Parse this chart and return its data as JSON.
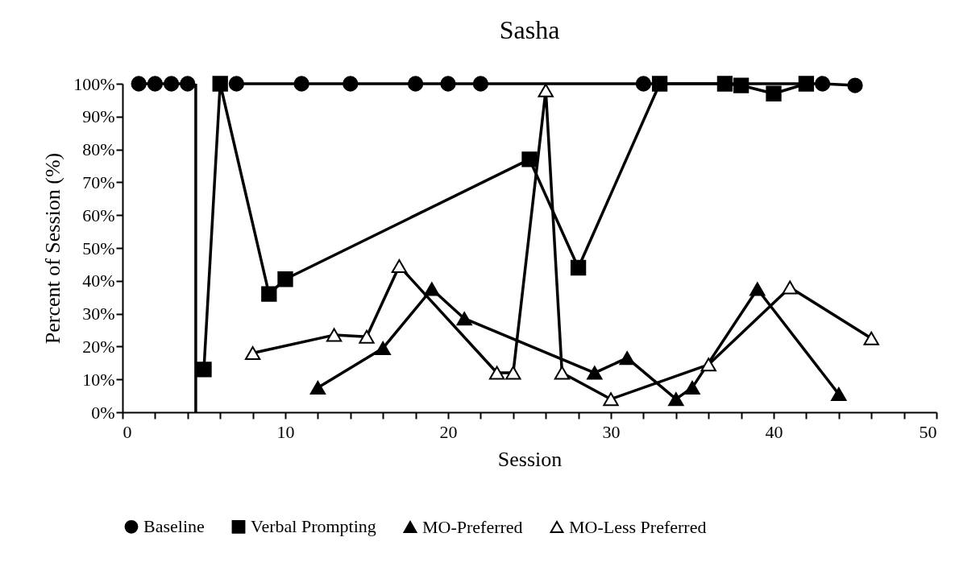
{
  "chart_data": {
    "type": "line",
    "title": "Sasha",
    "xlabel": "Session",
    "ylabel": "Percent of Session (%)",
    "xlim": [
      0,
      50
    ],
    "ylim": [
      0,
      100
    ],
    "xticks": [
      0,
      {
        "value": 2,
        "label": null
      },
      {
        "value": 4,
        "label": null
      },
      {
        "value": 6,
        "label": null
      },
      {
        "value": 8,
        "label": null
      },
      10,
      {
        "value": 12,
        "label": null
      },
      {
        "value": 14,
        "label": null
      },
      {
        "value": 16,
        "label": null
      },
      {
        "value": 18,
        "label": null
      },
      20,
      {
        "value": 22,
        "label": null
      },
      {
        "value": 24,
        "label": null
      },
      {
        "value": 26,
        "label": null
      },
      {
        "value": 28,
        "label": null
      },
      30,
      {
        "value": 32,
        "label": null
      },
      {
        "value": 34,
        "label": null
      },
      {
        "value": 36,
        "label": null
      },
      {
        "value": 38,
        "label": null
      },
      40,
      {
        "value": 42,
        "label": null
      },
      {
        "value": 44,
        "label": null
      },
      {
        "value": 46,
        "label": null
      },
      {
        "value": 48,
        "label": null
      },
      50
    ],
    "yticks": [
      {
        "value": 0,
        "label": "0%"
      },
      {
        "value": 10,
        "label": "10%"
      },
      {
        "value": 20,
        "label": "20%"
      },
      {
        "value": 30,
        "label": "30%"
      },
      {
        "value": 40,
        "label": "40%"
      },
      {
        "value": 50,
        "label": "50%"
      },
      {
        "value": 60,
        "label": "60%"
      },
      {
        "value": 70,
        "label": "70%"
      },
      {
        "value": 80,
        "label": "80%"
      },
      {
        "value": 90,
        "label": "90%"
      },
      {
        "value": 100,
        "label": "100%"
      }
    ],
    "grid": false,
    "legend": "bottom",
    "line_style": "solid",
    "ref_lines": [
      {
        "axis": "x",
        "value": 4.5,
        "color": "#000000"
      }
    ],
    "series": [
      {
        "name": "Baseline",
        "color": "#000000",
        "marker": "circle",
        "x": [
          1,
          2,
          3,
          4,
          5,
          7,
          11,
          14,
          18,
          20,
          22,
          32,
          43,
          45
        ],
        "values": [
          100,
          100,
          100,
          100,
          null,
          100,
          100,
          100,
          100,
          100,
          100,
          100,
          100,
          99.5
        ]
      },
      {
        "name": "Verbal Prompting",
        "color": "#000000",
        "marker": "square",
        "x": [
          5,
          6,
          9,
          10,
          25,
          28,
          33,
          37,
          38,
          40,
          42
        ],
        "values": [
          13,
          100,
          36,
          40.5,
          77,
          44,
          100,
          100,
          99.5,
          97,
          100
        ]
      },
      {
        "name": "MO-Preferred",
        "color": "#000000",
        "marker": "triangle",
        "x": [
          12,
          16,
          19,
          21,
          29,
          31,
          34,
          35,
          39,
          44
        ],
        "values": [
          7.5,
          19.5,
          37.5,
          28.5,
          12,
          16.5,
          4,
          7.5,
          37.5,
          5.5
        ]
      },
      {
        "name": "MO-Less Preferred",
        "color": "#ffffff",
        "marker": "triangle",
        "x": [
          8,
          13,
          15,
          17,
          23,
          24,
          26,
          27,
          30,
          36,
          41,
          46
        ],
        "values": [
          18,
          23.5,
          23,
          44.5,
          12,
          12,
          98,
          12,
          4,
          14.5,
          38,
          22.5
        ]
      }
    ]
  }
}
